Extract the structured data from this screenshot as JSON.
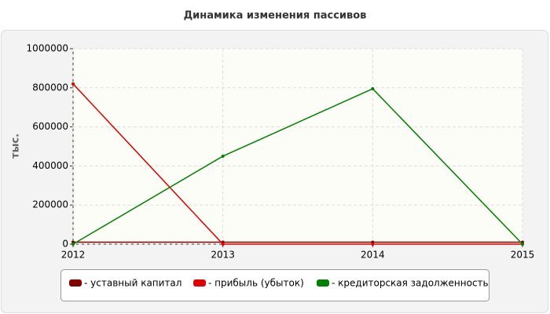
{
  "chart_data": {
    "type": "line",
    "title": "Динамика изменения пассивов",
    "y_label": "тыс.",
    "x": [
      2012,
      2013,
      2014,
      2015
    ],
    "xlim": [
      2012,
      2015
    ],
    "xticks": [
      2012,
      2013,
      2014,
      2015
    ],
    "ylim": [
      0,
      1000000
    ],
    "yticks": [
      0,
      200000,
      400000,
      600000,
      800000,
      1000000
    ],
    "grid": true,
    "series": [
      {
        "name": "- уставный капитал",
        "color": "#800000",
        "values": [
          10000,
          10000,
          10000,
          10000
        ]
      },
      {
        "name": "- прибыль (убыток)",
        "color": "#e00000",
        "values": [
          820000,
          0,
          0,
          0
        ]
      },
      {
        "name": "- кредиторская задолженность",
        "color": "#008000",
        "values": [
          0,
          450000,
          795000,
          0
        ]
      }
    ]
  }
}
